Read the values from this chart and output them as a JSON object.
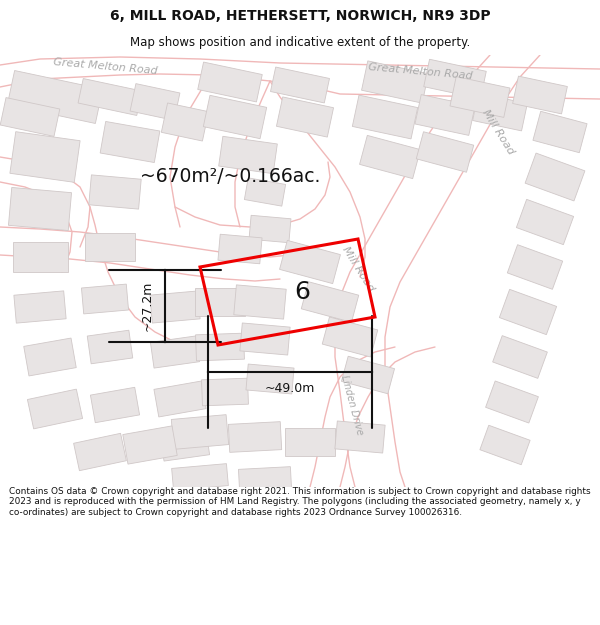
{
  "title_line1": "6, MILL ROAD, HETHERSETT, NORWICH, NR9 3DP",
  "title_line2": "Map shows position and indicative extent of the property.",
  "copyright_text": "Contains OS data © Crown copyright and database right 2021. This information is subject to Crown copyright and database rights 2023 and is reproduced with the permission of HM Land Registry. The polygons (including the associated geometry, namely x, y co-ordinates) are subject to Crown copyright and database rights 2023 Ordnance Survey 100026316.",
  "area_label": "~670m²/~0.166ac.",
  "dim_width": "~49.0m",
  "dim_height": "~27.2m",
  "property_number": "6",
  "bg_white": "#ffffff",
  "building_fill": "#e8e4e4",
  "building_edge": "#d0c8c8",
  "road_outline": "#f0b8b8",
  "property_color": "#ee0000",
  "dim_color": "#111111",
  "road_label_color": "#aaaaaa",
  "title_color": "#111111"
}
